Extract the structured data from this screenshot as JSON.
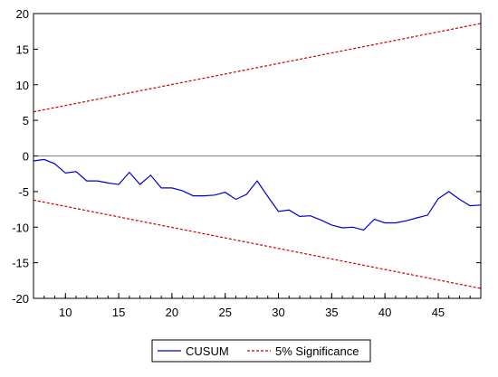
{
  "chart_data": {
    "type": "line",
    "xlim": [
      7,
      49
    ],
    "ylim": [
      -20,
      20
    ],
    "x_ticks": [
      10,
      15,
      20,
      25,
      30,
      35,
      40,
      45
    ],
    "x_tick_labels": [
      "10",
      "15",
      "20",
      "25",
      "30",
      "35",
      "40",
      "45"
    ],
    "y_ticks": [
      20,
      15,
      10,
      5,
      0,
      -5,
      -10,
      -15,
      -20
    ],
    "y_tick_labels": [
      "20",
      "15",
      "10",
      "5",
      "0",
      "-5",
      "-10",
      "-15",
      "-20"
    ],
    "grid": false,
    "zero_line": true,
    "legend_position": "bottom",
    "series": [
      {
        "name": "CUSUM",
        "color": "#0000cc",
        "style": "solid",
        "x": [
          7,
          8,
          9,
          10,
          11,
          12,
          13,
          14,
          15,
          16,
          17,
          18,
          19,
          20,
          21,
          22,
          23,
          24,
          25,
          26,
          27,
          28,
          29,
          30,
          31,
          32,
          33,
          34,
          35,
          36,
          37,
          38,
          39,
          40,
          41,
          42,
          43,
          44,
          45,
          46,
          47,
          48,
          49
        ],
        "y": [
          -0.7,
          -0.5,
          -1.1,
          -2.4,
          -2.2,
          -3.5,
          -3.5,
          -3.8,
          -4.0,
          -2.3,
          -4.0,
          -2.7,
          -4.5,
          -4.5,
          -4.9,
          -5.6,
          -5.6,
          -5.5,
          -5.1,
          -6.1,
          -5.4,
          -3.5,
          -5.7,
          -7.8,
          -7.6,
          -8.5,
          -8.4,
          -9.0,
          -9.7,
          -10.1,
          -10.0,
          -10.4,
          -8.9,
          -9.4,
          -9.4,
          -9.1,
          -8.7,
          -8.3,
          -6.0,
          -5.0,
          -6.1,
          -7.0,
          -6.9
        ]
      },
      {
        "name": "5% Significance",
        "color": "#cc0000",
        "style": "dashed",
        "x": [
          7,
          49
        ],
        "y": [
          6.2,
          18.6
        ]
      },
      {
        "name": "",
        "color": "#cc0000",
        "style": "dashed",
        "x": [
          7,
          49
        ],
        "y": [
          -6.2,
          -18.6
        ]
      }
    ]
  }
}
